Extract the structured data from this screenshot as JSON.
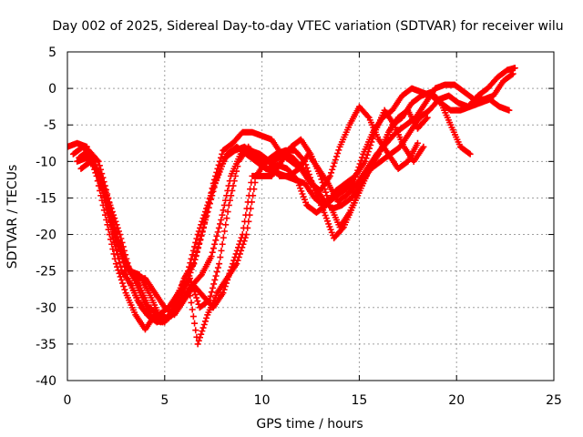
{
  "chart_data": {
    "type": "scatter",
    "title": "Day 002 of 2025, Sidereal Day-to-day VTEC variation (SDTVAR) for receiver wilu",
    "xlabel": "GPS time / hours",
    "ylabel": "SDTVAR / TECUs",
    "xlim": [
      0,
      25
    ],
    "ylim": [
      -40,
      5
    ],
    "xticks": [
      0,
      5,
      10,
      15,
      20,
      25
    ],
    "yticks": [
      -40,
      -35,
      -30,
      -25,
      -20,
      -15,
      -10,
      -5,
      0,
      5
    ],
    "grid": true,
    "marker": "plus",
    "color": "#ff0000",
    "series": [
      {
        "x": [
          0.0,
          0.5,
          1.0,
          1.5,
          2.0,
          2.5,
          3.0,
          3.5,
          4.0,
          4.5,
          5.0,
          5.5,
          6.0,
          6.5,
          7.0,
          7.5,
          8.0,
          8.5,
          9.0,
          9.5,
          10.0,
          10.5,
          11.0,
          11.5,
          12.0,
          12.5,
          13.0,
          13.5,
          14.0,
          14.5,
          15.0,
          15.5,
          16.0,
          16.5,
          17.0,
          17.5,
          18.0
        ],
        "y": [
          -8,
          -7.5,
          -8,
          -12,
          -18,
          -24,
          -28,
          -31,
          -33,
          -31,
          -32,
          -30,
          -26,
          -24,
          -19,
          -13,
          -8.5,
          -7.5,
          -6,
          -6,
          -6.5,
          -7,
          -9,
          -10,
          -11,
          -13,
          -14,
          -12,
          -8,
          -5,
          -2.5,
          -4,
          -7,
          -9,
          -11,
          -10,
          -7.5
        ]
      },
      {
        "x": [
          0.3,
          0.8,
          1.3,
          1.8,
          2.3,
          2.8,
          3.3,
          3.8,
          4.3,
          4.8,
          5.3,
          5.8,
          6.3,
          6.8,
          7.3,
          7.8,
          8.3,
          8.8,
          9.3,
          9.8,
          10.3,
          10.8,
          11.3,
          11.8,
          12.3,
          12.8,
          13.3,
          13.8,
          14.3,
          14.8,
          15.3,
          15.8,
          16.3,
          16.8,
          17.3,
          17.8,
          18.3
        ],
        "y": [
          -9,
          -8,
          -9.5,
          -14,
          -20,
          -25,
          -27,
          -30,
          -31.5,
          -32,
          -31,
          -28,
          -26,
          -30,
          -29,
          -24,
          -16,
          -10,
          -8,
          -10,
          -11,
          -10.5,
          -11,
          -12.5,
          -16,
          -17,
          -16,
          -14,
          -13,
          -12,
          -10,
          -6,
          -3,
          -5,
          -8,
          -10,
          -8
        ]
      },
      {
        "x": [
          0.5,
          1.0,
          1.5,
          2.0,
          2.5,
          3.0,
          3.5,
          4.0,
          4.5,
          5.0,
          5.5,
          6.0,
          6.5,
          7.0,
          7.5,
          8.0,
          8.5,
          9.0,
          9.5,
          10.0,
          10.5,
          11.0,
          11.5,
          12.0,
          12.5,
          13.0,
          13.5,
          14.0,
          14.5,
          15.0,
          15.5,
          16.0,
          16.5,
          17.0,
          17.5,
          18.0,
          18.5
        ],
        "y": [
          -10,
          -9.5,
          -11,
          -16,
          -21,
          -24,
          -26,
          -26,
          -28,
          -30,
          -31,
          -29,
          -27,
          -28.5,
          -30,
          -28,
          -24,
          -20,
          -12,
          -12,
          -12,
          -10,
          -8,
          -7,
          -9,
          -12,
          -16,
          -19,
          -17,
          -14,
          -11,
          -9,
          -6,
          -4,
          -3,
          -5.5,
          -4
        ]
      },
      {
        "x": [
          0.7,
          1.2,
          1.7,
          2.2,
          2.7,
          3.2,
          3.7,
          4.2,
          4.7,
          5.2,
          5.7,
          6.2,
          6.7,
          7.2,
          7.7,
          8.2,
          8.7,
          9.2,
          9.7,
          10.2,
          10.7,
          11.2,
          11.7,
          12.2,
          12.7,
          13.2,
          13.7,
          14.2,
          14.7,
          15.2,
          15.7,
          16.2,
          16.7,
          17.2,
          17.7,
          18.2,
          18.7,
          19.2,
          19.7,
          20.2,
          20.7
        ],
        "y": [
          -11,
          -10,
          -12,
          -17,
          -22,
          -25,
          -25.5,
          -28,
          -31,
          -31.5,
          -28,
          -26.5,
          -35,
          -31,
          -28,
          -26,
          -24,
          -20,
          -12,
          -10,
          -9,
          -8.5,
          -8.5,
          -10,
          -14,
          -17,
          -20.5,
          -19,
          -16,
          -13,
          -10,
          -8,
          -5,
          -4,
          -2,
          -1,
          -0.5,
          -2,
          -5,
          -8,
          -9
        ]
      },
      {
        "x": [
          0.9,
          1.4,
          1.9,
          2.4,
          2.9,
          3.4,
          3.9,
          4.4,
          4.9,
          5.4,
          5.9,
          6.4,
          6.9,
          7.4,
          7.9,
          8.4,
          8.9,
          9.4,
          9.9,
          10.4,
          10.9,
          11.4,
          11.9,
          12.4,
          12.9,
          13.4,
          13.9,
          14.4,
          14.9,
          15.4,
          15.9,
          16.4,
          16.9,
          17.4,
          17.9,
          18.4,
          18.9,
          19.4,
          19.9,
          20.4,
          20.9,
          21.4,
          21.9,
          22.4,
          22.9
        ],
        "y": [
          -8,
          -10,
          -14,
          -19,
          -23,
          -26,
          -29,
          -31.5,
          -32,
          -31,
          -29,
          -27,
          -25.5,
          -23,
          -18,
          -12,
          -9,
          -8.5,
          -9,
          -10,
          -12,
          -12,
          -11,
          -9,
          -11,
          -13,
          -15.5,
          -14.5,
          -13,
          -11,
          -9,
          -7.5,
          -6,
          -5,
          -4,
          -2,
          0,
          0.5,
          0.5,
          -0.5,
          -1.5,
          -1.5,
          -1,
          1,
          2
        ]
      },
      {
        "x": [
          1.2,
          1.7,
          2.2,
          2.7,
          3.2,
          3.7,
          4.2,
          4.7,
          5.2,
          5.7,
          6.2,
          6.7,
          7.2,
          7.7,
          8.2,
          8.7,
          9.2,
          9.7,
          10.2,
          10.7,
          11.2,
          11.7,
          12.2,
          12.7,
          13.2,
          13.7,
          14.2,
          14.7,
          15.2,
          15.7,
          16.2,
          16.7,
          17.2,
          17.7,
          18.2,
          18.7,
          19.2,
          19.7,
          20.2,
          20.7,
          21.2,
          21.7,
          22.2,
          22.7
        ],
        "y": [
          -10,
          -12,
          -16,
          -20,
          -25,
          -27,
          -30,
          -31,
          -30,
          -28,
          -25,
          -20,
          -16,
          -12,
          -9,
          -8,
          -9,
          -10,
          -11,
          -11.5,
          -12,
          -12.5,
          -13,
          -15,
          -16,
          -15,
          -14,
          -13,
          -9,
          -6,
          -4,
          -3,
          -1,
          0,
          -0.5,
          -1,
          -2,
          -3,
          -3,
          -2.5,
          -2,
          -1.5,
          -2.5,
          -3
        ]
      },
      {
        "x": [
          0.6,
          1.1,
          1.6,
          2.1,
          2.6,
          3.1,
          3.6,
          4.1,
          4.6,
          5.1,
          5.6,
          6.1,
          6.6,
          7.1,
          7.6,
          8.1,
          8.6,
          9.1,
          9.6,
          10.1,
          10.6,
          11.1,
          11.6,
          12.1,
          12.6,
          13.1,
          13.6,
          14.1,
          14.6,
          15.1,
          15.6,
          16.1,
          16.6,
          17.1,
          17.6,
          18.1,
          18.6,
          19.1,
          19.6,
          20.1,
          20.6,
          21.1,
          21.6,
          22.1,
          22.6,
          23.0
        ],
        "y": [
          -9.5,
          -8.5,
          -10,
          -15,
          -21,
          -26,
          -29,
          -31,
          -32,
          -31.5,
          -30,
          -27,
          -23,
          -18,
          -13,
          -9.5,
          -8.5,
          -8,
          -9,
          -10,
          -10,
          -9,
          -9.5,
          -11,
          -13,
          -15,
          -16.5,
          -16,
          -15,
          -13,
          -11,
          -10,
          -9,
          -8,
          -6,
          -4,
          -3,
          -1.5,
          -1,
          -2,
          -2.5,
          -1,
          0,
          1.5,
          2.5,
          2.8
        ]
      }
    ]
  }
}
